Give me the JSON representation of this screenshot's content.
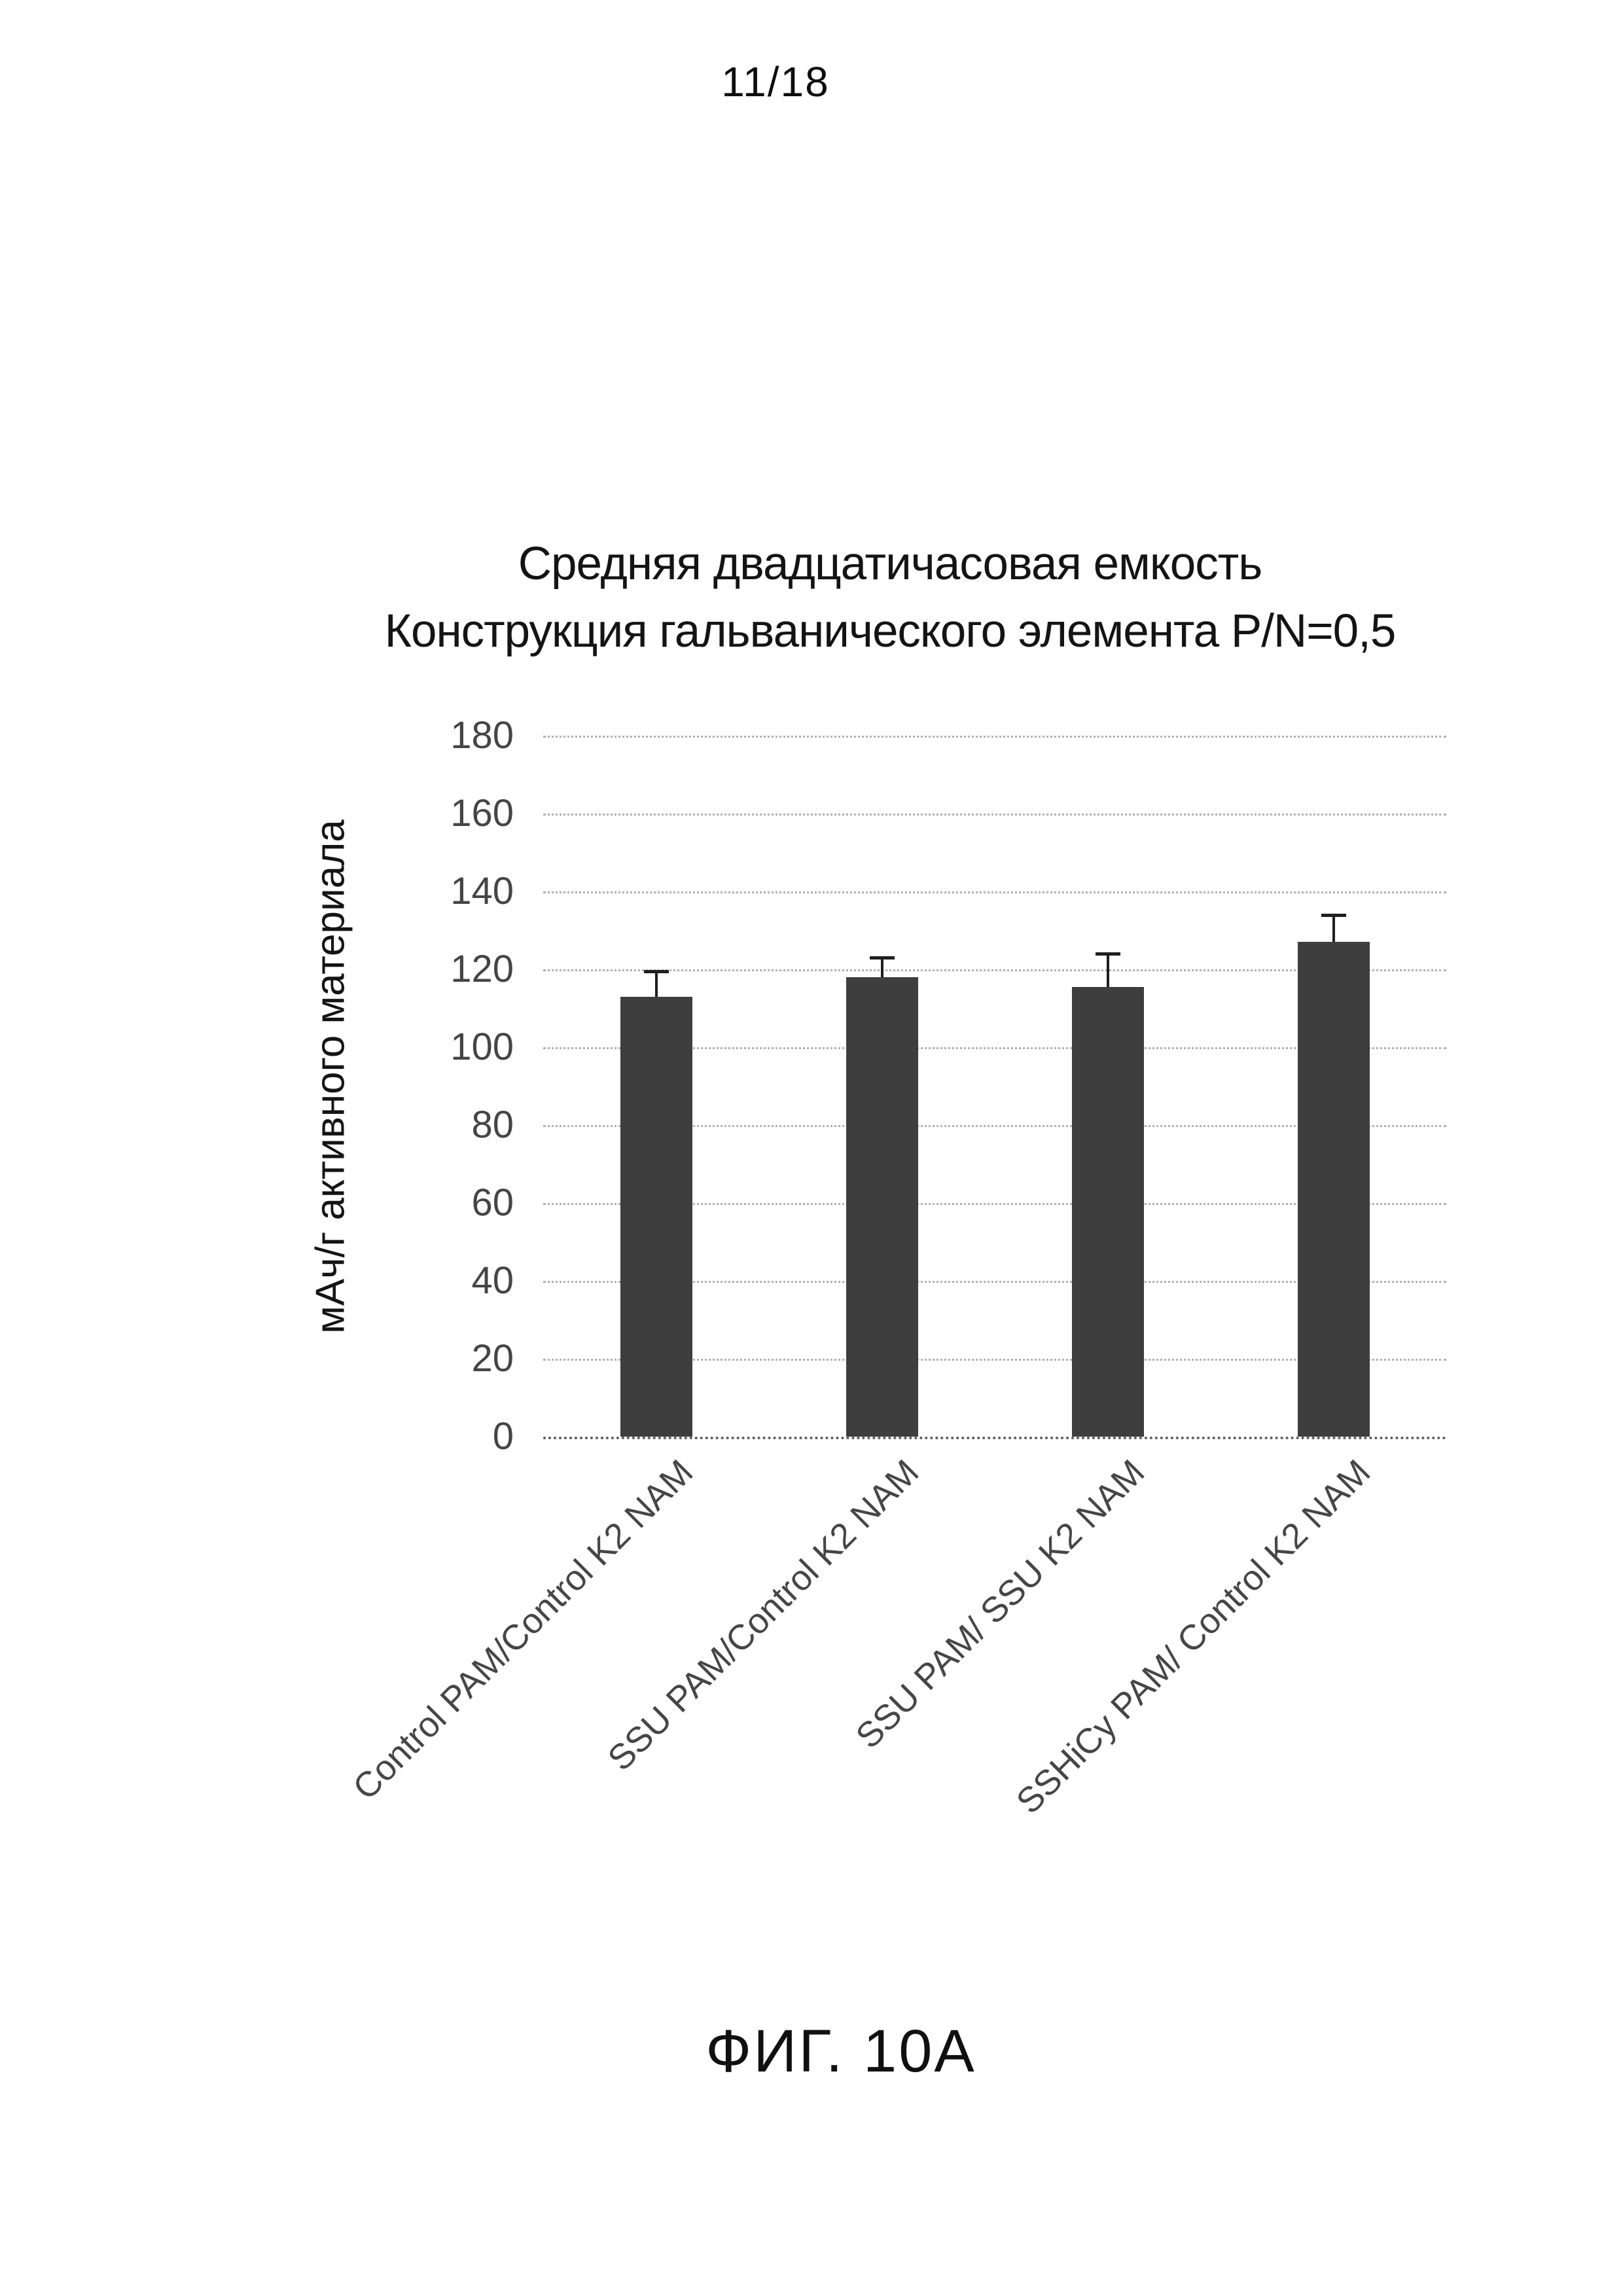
{
  "page": {
    "header": "11/18",
    "caption": "ФИГ. 10A"
  },
  "chart_data": {
    "type": "bar",
    "title_lines": [
      "Средняя двадцатичасовая емкость",
      "Конструкция гальванического элемента P/N=0,5"
    ],
    "ylabel": "мАч/г активного материала",
    "ylim": [
      0,
      180
    ],
    "yticks": [
      0,
      20,
      40,
      60,
      80,
      100,
      120,
      140,
      160,
      180
    ],
    "categories": [
      "Control PAM/Control K2 NAM",
      "SSU PAM/Control K2 NAM",
      "SSU PAM/ SSU K2 NAM",
      "SSHiCy PAM/ Control K2 NAM"
    ],
    "values": [
      113,
      118,
      115.5,
      127
    ],
    "error_plus": [
      6.5,
      5,
      8.5,
      7
    ],
    "bar_color": "#3e3e3e",
    "error_color": "#1f1f1f",
    "grid": true,
    "legend": "none"
  }
}
